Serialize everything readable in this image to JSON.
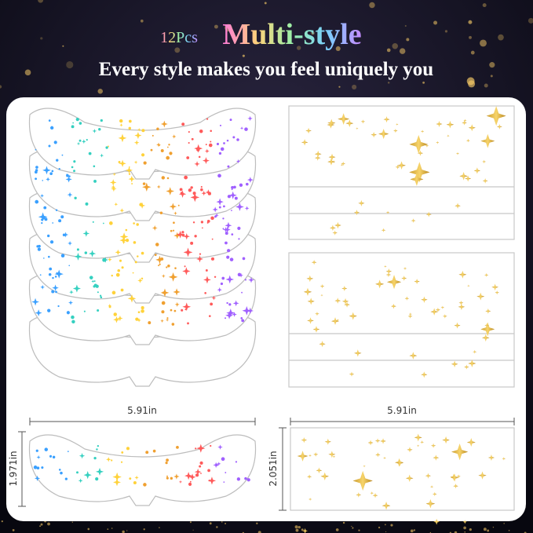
{
  "header": {
    "count": "12Pcs",
    "title": "Multi-style",
    "subtitle": "Every style makes you feel uniquely you"
  },
  "dimensions": {
    "left_width": "5.91in",
    "left_height": "1.971in",
    "right_width": "5.91in",
    "right_height": "2.051in"
  }
}
